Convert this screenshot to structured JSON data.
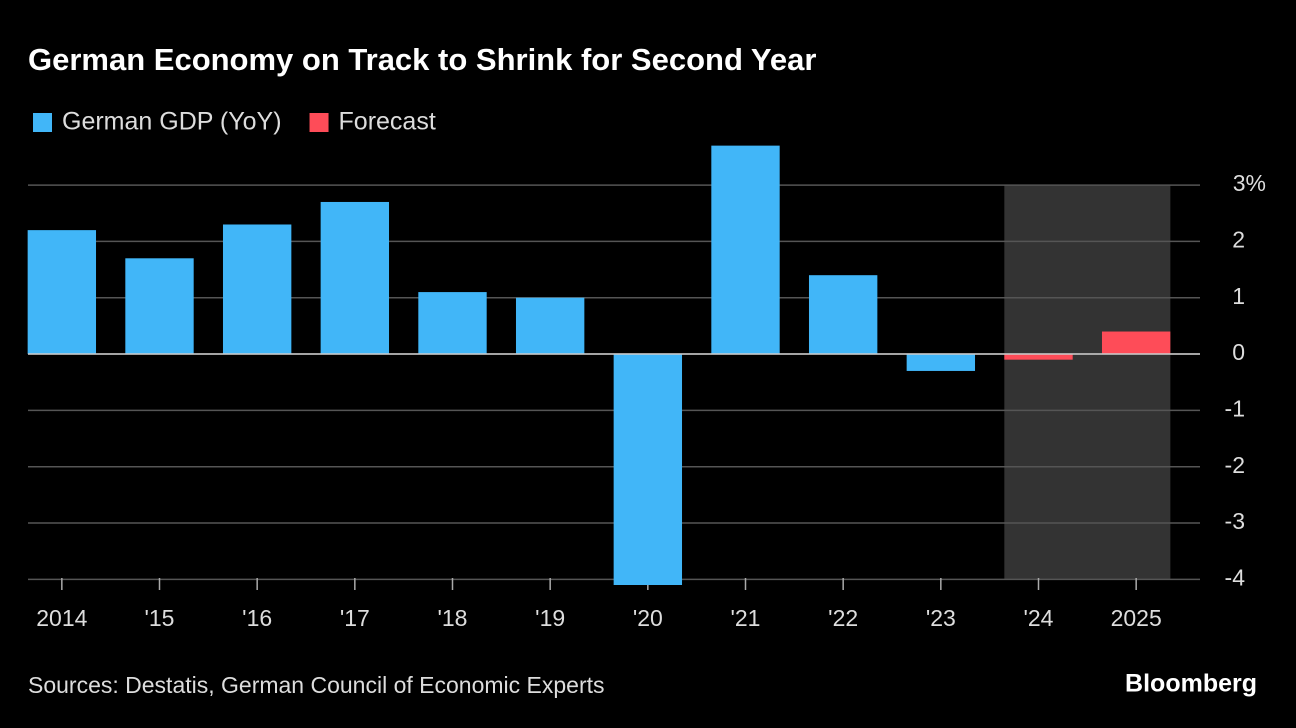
{
  "chart_data": {
    "type": "bar",
    "title": "German Economy on Track to Shrink for Second Year",
    "source": "Sources: Destatis, German Council of Economic Experts",
    "brand": "Bloomberg",
    "categories": [
      "2014",
      "'15",
      "'16",
      "'17",
      "'18",
      "'19",
      "'20",
      "'21",
      "'22",
      "'23",
      "'24",
      "2025"
    ],
    "series": [
      {
        "name": "German GDP (YoY)",
        "color": "#41b6f8",
        "values": [
          2.2,
          1.7,
          2.3,
          2.7,
          1.1,
          1.0,
          -4.1,
          3.7,
          1.4,
          -0.3,
          null,
          null
        ]
      },
      {
        "name": "Forecast",
        "color": "#fe4c58",
        "values": [
          null,
          null,
          null,
          null,
          null,
          null,
          null,
          null,
          null,
          null,
          -0.1,
          0.4
        ]
      }
    ],
    "ylim": [
      -4.1,
      3.8
    ],
    "yticks": [
      {
        "value": 3,
        "label": "3%"
      },
      2,
      1,
      0,
      -1,
      -2,
      -3,
      -4
    ],
    "grid": true
  }
}
